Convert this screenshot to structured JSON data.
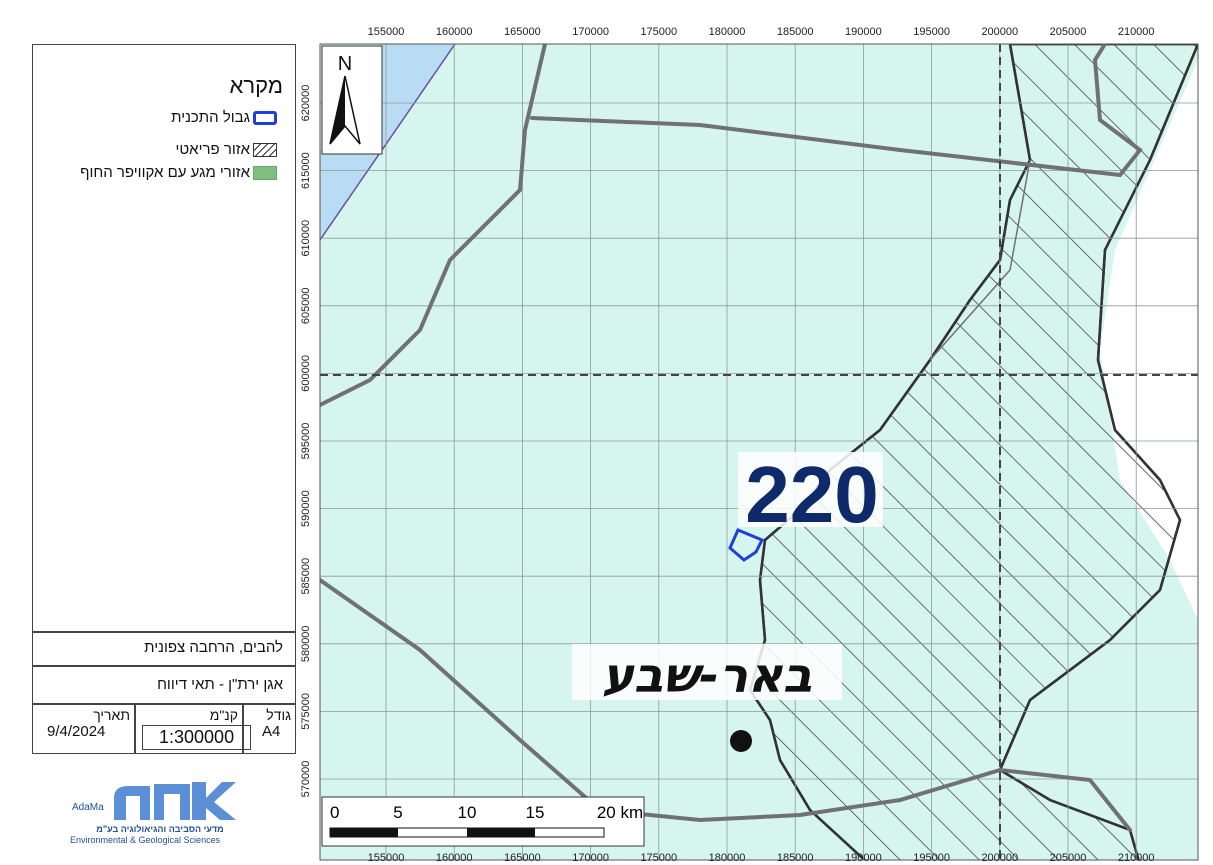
{
  "legend": {
    "title": "מקרא",
    "items": [
      {
        "label": "גבול התכנית",
        "swatch": "boundary",
        "color": "#1f3fd6"
      },
      {
        "label": "אזור פריאטי",
        "swatch": "hatch",
        "color": "#333333"
      },
      {
        "label": "אזורי מגע עם אקוויפר החוף",
        "swatch": "fill",
        "color": "#7fbf7f"
      }
    ]
  },
  "title_block": {
    "line1": "להבים, הרחבה צפונית",
    "line2": "אגן ירת\"ן - תאי דיווח",
    "date_label": "תאריך",
    "date_value": "9/4/2024",
    "scale_label": "קנ\"מ",
    "scale_value": "1:300000",
    "size_label": "גודל",
    "size_value": "A4"
  },
  "logo": {
    "latin": "AdaMa",
    "hebrew_mark": "אדמה",
    "subtitle_he": "מדעי הסביבה והגיאולוגיה בע\"מ",
    "subtitle_en": "Environmental & Geological Sciences"
  },
  "map": {
    "north_label": "N",
    "x_ticks": [
      "155000",
      "160000",
      "165000",
      "170000",
      "175000",
      "180000",
      "185000",
      "190000",
      "195000",
      "200000",
      "205000",
      "210000"
    ],
    "y_ticks": [
      "620000",
      "615000",
      "610000",
      "605000",
      "600000",
      "595000",
      "590000",
      "585000",
      "580000",
      "575000",
      "570000"
    ],
    "cell_label": "220",
    "city_label": "באר-שבע",
    "scale_bar": [
      "0",
      "5",
      "10",
      "15",
      "20 km"
    ],
    "colors": {
      "land": "#d6f5ee",
      "sea": "#b9dcf5",
      "grid": "#8f9a98",
      "road": "#6f7270",
      "boundary": "#1f3fd6",
      "cell_label": "#0f2a6b"
    }
  }
}
